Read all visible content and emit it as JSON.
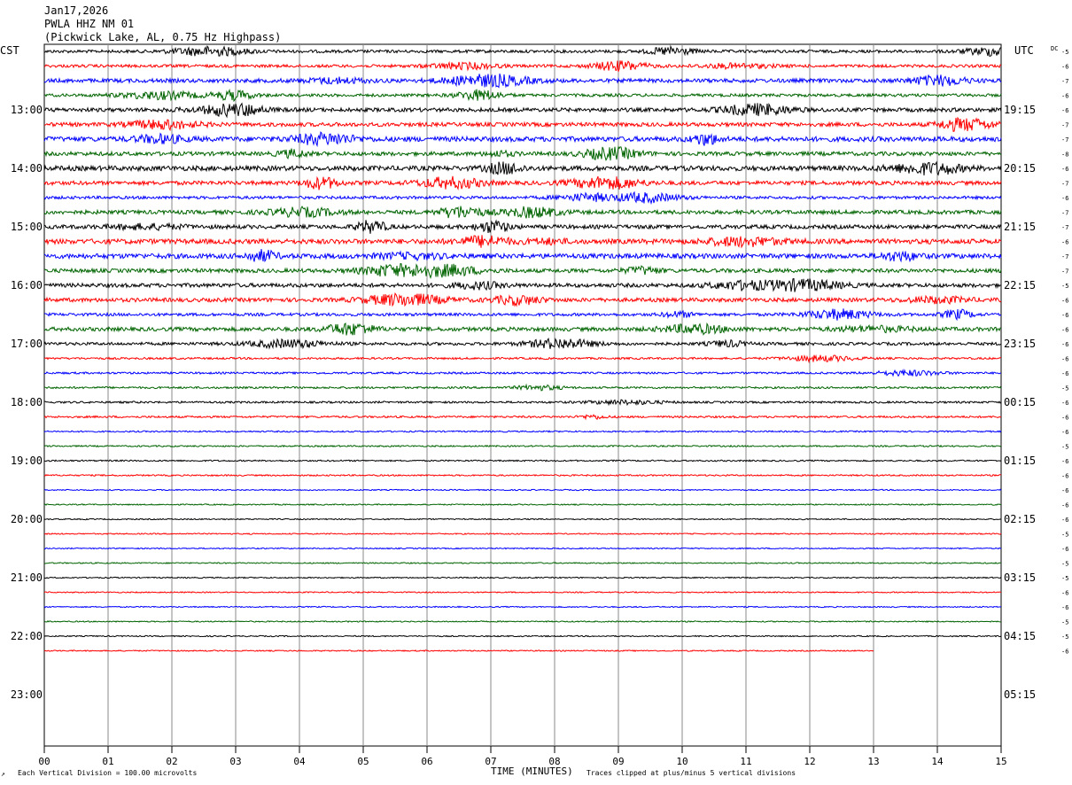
{
  "header": {
    "date": "Jan17,2026",
    "station": "PWLA HHZ NM 01",
    "location": "(Pickwick Lake, AL, 0.75 Hz Highpass)"
  },
  "left_tz": "CST",
  "right_tz": "UTC",
  "dc_label": "DC",
  "footer": {
    "scale_note": "Each Vertical Division =  100.00 microvolts",
    "xlabel": "TIME (MINUTES)",
    "clip_note": "Traces clipped at plus/minus 5 vertical divisions"
  },
  "colors": {
    "cycle": [
      "#000000",
      "#ff0000",
      "#0000ff",
      "#006400"
    ],
    "grid": "#888888"
  },
  "chart_data": {
    "type": "line",
    "title": "PWLA HHZ NM 01",
    "xlabel": "TIME (MINUTES)",
    "xlim": [
      0,
      15
    ],
    "x_ticks": [
      "00",
      "01",
      "02",
      "03",
      "04",
      "05",
      "06",
      "07",
      "08",
      "09",
      "10",
      "11",
      "12",
      "13",
      "14",
      "15"
    ],
    "rows_total": 44,
    "rows_recorded": 42,
    "last_row_end_minute": 13,
    "left_hour_labels": [
      "13:00",
      "14:00",
      "15:00",
      "16:00",
      "17:00",
      "18:00",
      "19:00",
      "20:00",
      "21:00",
      "22:00",
      "23:00"
    ],
    "right_hour_labels": [
      "19:15",
      "20:15",
      "21:15",
      "22:15",
      "23:15",
      "00:15",
      "01:15",
      "02:15",
      "03:15",
      "04:15",
      "05:15"
    ],
    "row_dc_offsets": [
      -5,
      -6,
      -7,
      -6,
      -6,
      -7,
      -7,
      -8,
      -6,
      -7,
      -6,
      -7,
      -7,
      -6,
      -7,
      -7,
      -5,
      -6,
      -6,
      -6,
      -6,
      -6,
      -6,
      -5,
      -6,
      -6,
      -6,
      -5,
      -6,
      -6,
      -6,
      -6,
      -6,
      -5,
      -6,
      -5,
      -5,
      -6,
      -6,
      -5,
      -5,
      -6
    ],
    "row_activity": [
      3,
      3,
      4,
      3,
      4,
      4,
      5,
      4,
      5,
      4,
      3,
      4,
      4,
      5,
      5,
      4,
      4,
      4,
      3,
      4,
      3,
      2,
      2,
      2,
      2,
      2,
      1.5,
      1.5,
      1.5,
      1.5,
      1.2,
      1.2,
      1.2,
      1.2,
      1.2,
      1.2,
      1.2,
      1.2,
      1.2,
      1.2,
      1.2,
      1.2
    ],
    "units": "microvolts per vertical division: 100.00"
  }
}
